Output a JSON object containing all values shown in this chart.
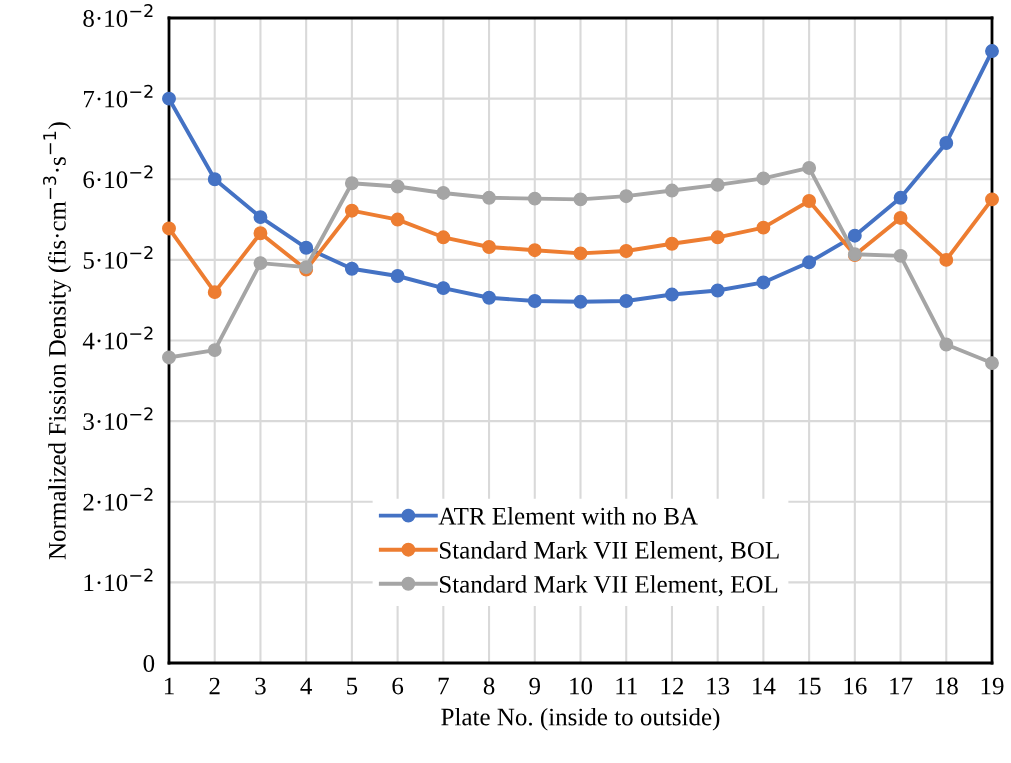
{
  "chart_data": {
    "type": "line",
    "xlabel": "Plate No. (inside to outside)",
    "ylabel": "Normalized Fission Density (fis·cm$^{−3}$·s$^{−1}$)",
    "x": [
      1,
      2,
      3,
      4,
      5,
      6,
      7,
      8,
      9,
      10,
      11,
      12,
      13,
      14,
      15,
      16,
      17,
      18,
      19
    ],
    "xlim": [
      1,
      19
    ],
    "xticks": [
      1,
      2,
      3,
      4,
      5,
      6,
      7,
      8,
      9,
      10,
      11,
      12,
      13,
      14,
      15,
      16,
      17,
      18,
      19
    ],
    "ylim": [
      0,
      0.08
    ],
    "yticks": [
      0,
      {
        "value": 0.01,
        "label": "1·10$^{−2}$"
      },
      {
        "value": 0.02,
        "label": "2·10$^{−2}$"
      },
      {
        "value": 0.03,
        "label": "3·10$^{−2}$"
      },
      {
        "value": 0.04,
        "label": "4·10$^{−2}$"
      },
      {
        "value": 0.05,
        "label": "5·10$^{−2}$"
      },
      {
        "value": 0.06,
        "label": "6·10$^{−2}$"
      },
      {
        "value": 0.07,
        "label": "7·10$^{−2}$"
      },
      {
        "value": 0.08,
        "label": "8·10$^{−2}$"
      }
    ],
    "grid": true,
    "legend": "bottom",
    "marker": "circle",
    "line_style": "solid",
    "series": [
      {
        "name": "ATR Element with no BA",
        "color": "#4472c4",
        "values": [
          0.07,
          0.06,
          0.0553,
          0.0515,
          0.0489,
          0.048,
          0.0465,
          0.0453,
          0.0449,
          0.0448,
          0.0449,
          0.0457,
          0.0462,
          0.0472,
          0.0497,
          0.053,
          0.0577,
          0.0645,
          0.0759
        ]
      },
      {
        "name": "Standard Mark VII Element, BOL",
        "color": "#ed7d31",
        "values": [
          0.0539,
          0.046,
          0.0533,
          0.0488,
          0.0561,
          0.055,
          0.0528,
          0.0516,
          0.0512,
          0.0508,
          0.0511,
          0.052,
          0.0528,
          0.054,
          0.0573,
          0.0506,
          0.0552,
          0.05,
          0.0575
        ]
      },
      {
        "name": "Standard Mark VII Element, EOL",
        "color": "#a5a5a5",
        "values": [
          0.0379,
          0.0388,
          0.0496,
          0.0491,
          0.0595,
          0.0591,
          0.0583,
          0.0577,
          0.0576,
          0.0575,
          0.0579,
          0.0586,
          0.0593,
          0.0601,
          0.0614,
          0.0507,
          0.0505,
          0.0395,
          0.0372
        ]
      }
    ]
  }
}
